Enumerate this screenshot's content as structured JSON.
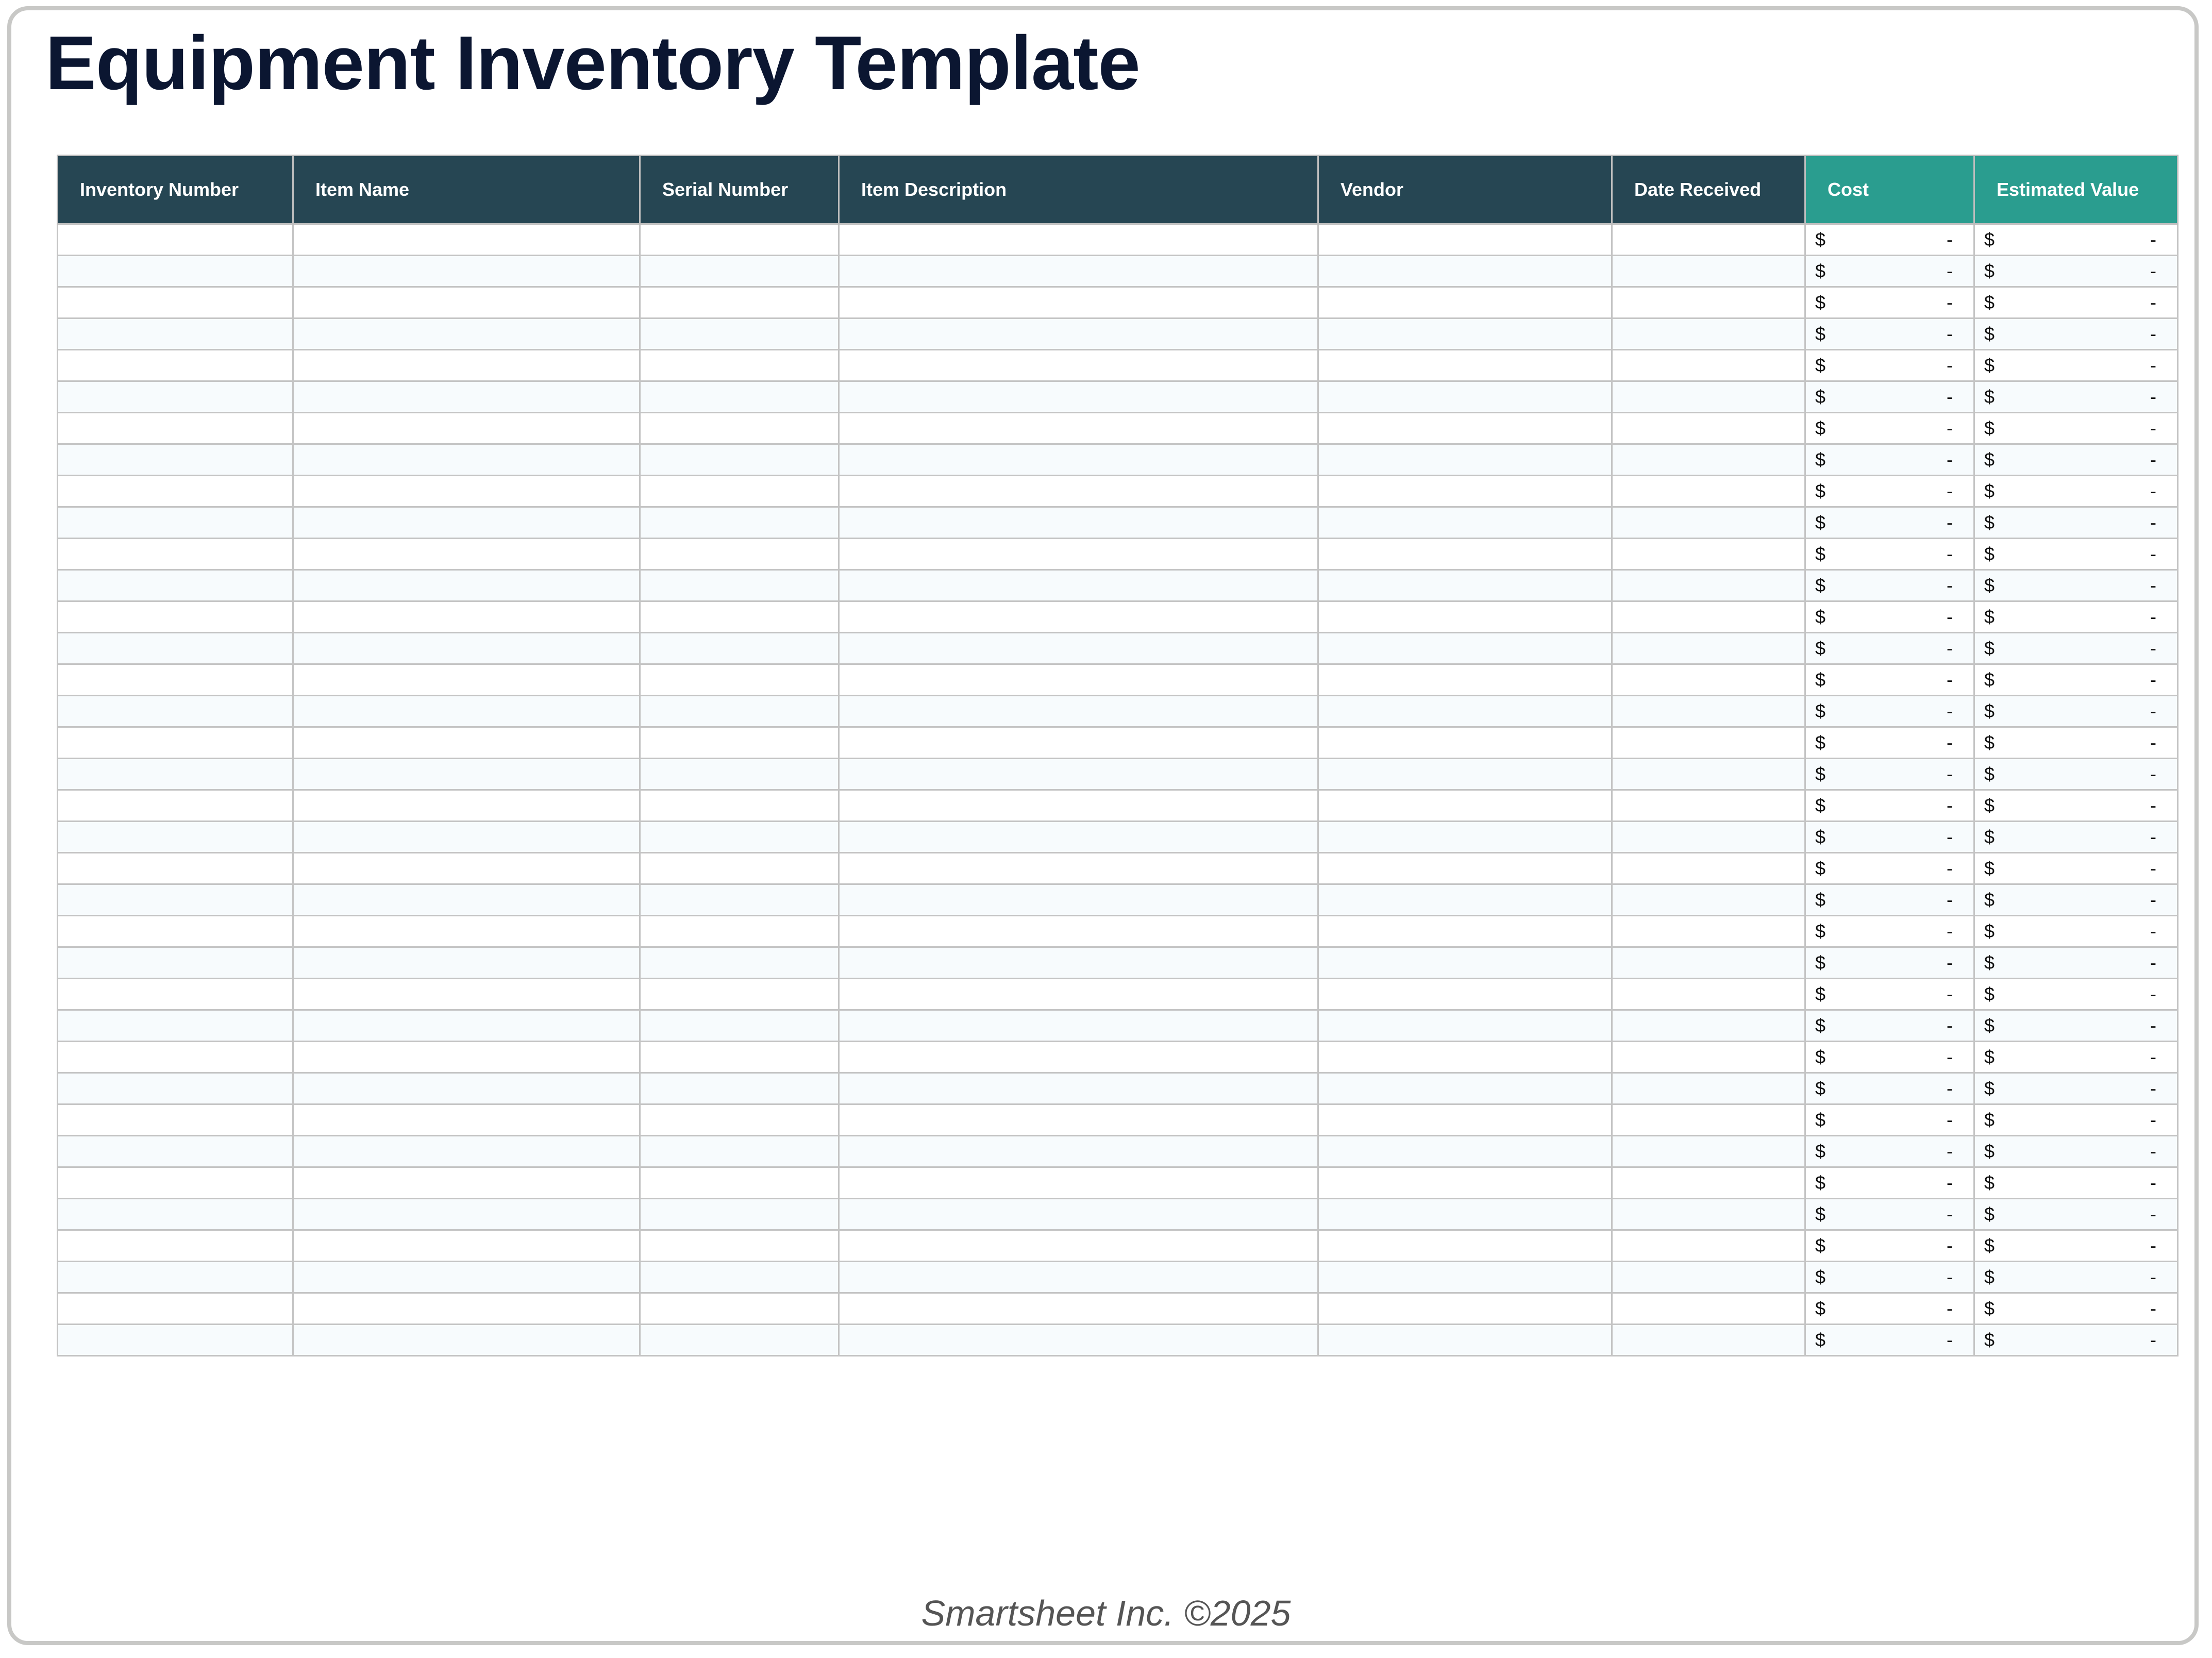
{
  "title": "Equipment Inventory Template",
  "columns": [
    "Inventory Number",
    "Item Name",
    "Serial Number",
    "Item Description",
    "Vendor",
    "Date Received",
    "Cost",
    "Estimated Value"
  ],
  "colors": {
    "header_dark": "#264653",
    "header_teal": "#2a9d8f",
    "title": "#0b1631",
    "row_alt": "#f7fbfd"
  },
  "currency_symbol": "$",
  "empty_value": "-",
  "row_count": 36,
  "footer": "Smartsheet Inc. ©2025"
}
